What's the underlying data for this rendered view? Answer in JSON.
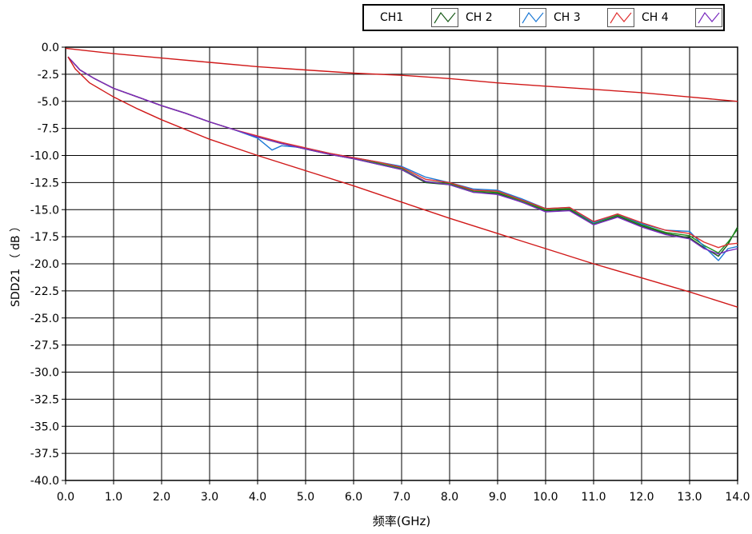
{
  "chart_data": {
    "type": "line",
    "title": "",
    "xlabel": "频率(GHz)",
    "ylabel": "SDD21 （ dB ）",
    "xlim": [
      0.0,
      14.0
    ],
    "ylim": [
      -40.0,
      0.0
    ],
    "x_ticks": [
      "0.0",
      "1.0",
      "2.0",
      "3.0",
      "4.0",
      "5.0",
      "6.0",
      "7.0",
      "8.0",
      "9.0",
      "10.0",
      "11.0",
      "12.0",
      "13.0",
      "14.0"
    ],
    "y_ticks": [
      "0.0",
      "-2.5",
      "-5.0",
      "-7.5",
      "-10.0",
      "-12.5",
      "-15.0",
      "-17.5",
      "-20.0",
      "-22.5",
      "-25.0",
      "-27.5",
      "-30.0",
      "-32.5",
      "-35.0",
      "-37.5",
      "-40.0"
    ],
    "grid": true,
    "legend_position": "top-right",
    "legend": [
      "CH1",
      "CH 2",
      "CH 3",
      "CH 4"
    ],
    "series": [
      {
        "name": "CH1",
        "color": "#1a5c1a",
        "x": [
          0.05,
          0.3,
          0.6,
          1.0,
          1.5,
          2.0,
          2.5,
          3.0,
          3.5,
          4.0,
          4.5,
          5.0,
          5.5,
          6.0,
          6.5,
          7.0,
          7.5,
          8.0,
          8.5,
          9.0,
          9.5,
          10.0,
          10.5,
          11.0,
          11.5,
          12.0,
          12.5,
          13.0,
          13.3,
          13.6,
          13.8,
          14.0
        ],
        "y": [
          -0.9,
          -2.1,
          -2.9,
          -3.8,
          -4.6,
          -5.4,
          -6.1,
          -6.9,
          -7.6,
          -8.3,
          -8.9,
          -9.4,
          -9.9,
          -10.3,
          -10.8,
          -11.3,
          -12.5,
          -12.7,
          -13.4,
          -13.5,
          -14.3,
          -15.1,
          -15.0,
          -16.4,
          -15.6,
          -16.5,
          -17.2,
          -17.6,
          -18.5,
          -19.3,
          -18.2,
          -16.6
        ]
      },
      {
        "name": "CH 2",
        "color": "#1f8f1f",
        "x": [
          0.05,
          0.3,
          0.6,
          1.0,
          1.5,
          2.0,
          2.5,
          3.0,
          3.5,
          4.0,
          4.5,
          5.0,
          5.5,
          6.0,
          6.5,
          7.0,
          7.5,
          8.0,
          8.5,
          9.0,
          9.5,
          10.0,
          10.5,
          11.0,
          11.5,
          12.0,
          12.5,
          13.0,
          13.3,
          13.6,
          13.8,
          14.0
        ],
        "y": [
          -0.9,
          -2.1,
          -2.9,
          -3.8,
          -4.6,
          -5.4,
          -6.1,
          -6.9,
          -7.6,
          -8.3,
          -8.9,
          -9.4,
          -9.9,
          -10.3,
          -10.7,
          -11.2,
          -12.4,
          -12.6,
          -13.3,
          -13.4,
          -14.2,
          -15.0,
          -14.9,
          -16.3,
          -15.5,
          -16.4,
          -17.1,
          -17.4,
          -18.3,
          -19.0,
          -18.0,
          -16.8
        ]
      },
      {
        "name": "CH 3",
        "color": "#1e7ad6",
        "x": [
          0.05,
          0.3,
          0.6,
          1.0,
          1.5,
          2.0,
          2.5,
          3.0,
          3.5,
          4.0,
          4.3,
          4.5,
          5.0,
          5.5,
          6.0,
          6.5,
          7.0,
          7.5,
          8.0,
          8.5,
          9.0,
          9.5,
          10.0,
          10.5,
          11.0,
          11.5,
          12.0,
          12.5,
          13.0,
          13.3,
          13.6,
          13.8,
          14.0
        ],
        "y": [
          -0.9,
          -2.1,
          -2.9,
          -3.8,
          -4.6,
          -5.4,
          -6.1,
          -6.9,
          -7.6,
          -8.4,
          -9.5,
          -9.1,
          -9.3,
          -9.8,
          -10.2,
          -10.6,
          -11.0,
          -12.0,
          -12.5,
          -13.1,
          -13.2,
          -14.0,
          -14.9,
          -14.8,
          -16.2,
          -15.4,
          -16.3,
          -16.9,
          -17.0,
          -18.4,
          -19.7,
          -18.6,
          -18.4
        ]
      },
      {
        "name": "CH 4",
        "color": "#e03030",
        "x": [
          0.05,
          0.3,
          0.6,
          1.0,
          1.5,
          2.0,
          2.5,
          3.0,
          3.5,
          4.0,
          4.5,
          5.0,
          5.5,
          6.0,
          6.5,
          7.0,
          7.5,
          8.0,
          8.5,
          9.0,
          9.5,
          10.0,
          10.5,
          11.0,
          11.5,
          12.0,
          12.5,
          13.0,
          13.3,
          13.6,
          13.8,
          14.0
        ],
        "y": [
          -0.9,
          -2.1,
          -2.9,
          -3.8,
          -4.6,
          -5.4,
          -6.1,
          -6.9,
          -7.6,
          -8.2,
          -8.8,
          -9.3,
          -9.8,
          -10.2,
          -10.6,
          -11.1,
          -12.2,
          -12.5,
          -13.2,
          -13.3,
          -14.1,
          -14.9,
          -14.8,
          -16.1,
          -15.4,
          -16.2,
          -16.9,
          -17.2,
          -18.0,
          -18.5,
          -18.2,
          -18.1
        ]
      },
      {
        "color": "#7a2bbf",
        "x": [
          0.05,
          0.3,
          0.6,
          1.0,
          1.5,
          2.0,
          2.5,
          3.0,
          3.5,
          4.0,
          4.5,
          5.0,
          5.5,
          6.0,
          6.5,
          7.0,
          7.5,
          8.0,
          8.5,
          9.0,
          9.5,
          10.0,
          10.5,
          11.0,
          11.5,
          12.0,
          12.5,
          13.0,
          13.3,
          13.6,
          13.8,
          14.0
        ],
        "y": [
          -0.9,
          -2.1,
          -2.9,
          -3.8,
          -4.6,
          -5.4,
          -6.1,
          -6.9,
          -7.6,
          -8.3,
          -8.9,
          -9.4,
          -9.9,
          -10.3,
          -10.8,
          -11.3,
          -12.4,
          -12.7,
          -13.4,
          -13.6,
          -14.3,
          -15.2,
          -15.1,
          -16.4,
          -15.7,
          -16.6,
          -17.3,
          -17.7,
          -18.6,
          -19.1,
          -18.8,
          -18.6
        ]
      },
      {
        "color": "#d01818",
        "x": [
          0.0,
          1.0,
          2.0,
          3.0,
          4.0,
          5.0,
          6.0,
          7.0,
          8.0,
          9.0,
          10.0,
          11.0,
          12.0,
          13.0,
          14.0
        ],
        "y": [
          -0.1,
          -0.6,
          -1.0,
          -1.4,
          -1.8,
          -2.1,
          -2.4,
          -2.6,
          -2.9,
          -3.3,
          -3.6,
          -3.9,
          -4.2,
          -4.6,
          -5.0
        ]
      },
      {
        "color": "#d01818",
        "x": [
          0.05,
          0.2,
          0.5,
          1.0,
          1.5,
          2.0,
          3.0,
          4.0,
          5.0,
          6.0,
          7.0,
          8.0,
          9.0,
          10.0,
          11.0,
          12.0,
          13.0,
          14.0
        ],
        "y": [
          -0.9,
          -2.0,
          -3.3,
          -4.6,
          -5.7,
          -6.7,
          -8.5,
          -10.0,
          -11.4,
          -12.8,
          -14.3,
          -15.8,
          -17.2,
          -18.6,
          -20.0,
          -21.3,
          -22.6,
          -24.0
        ]
      }
    ]
  }
}
